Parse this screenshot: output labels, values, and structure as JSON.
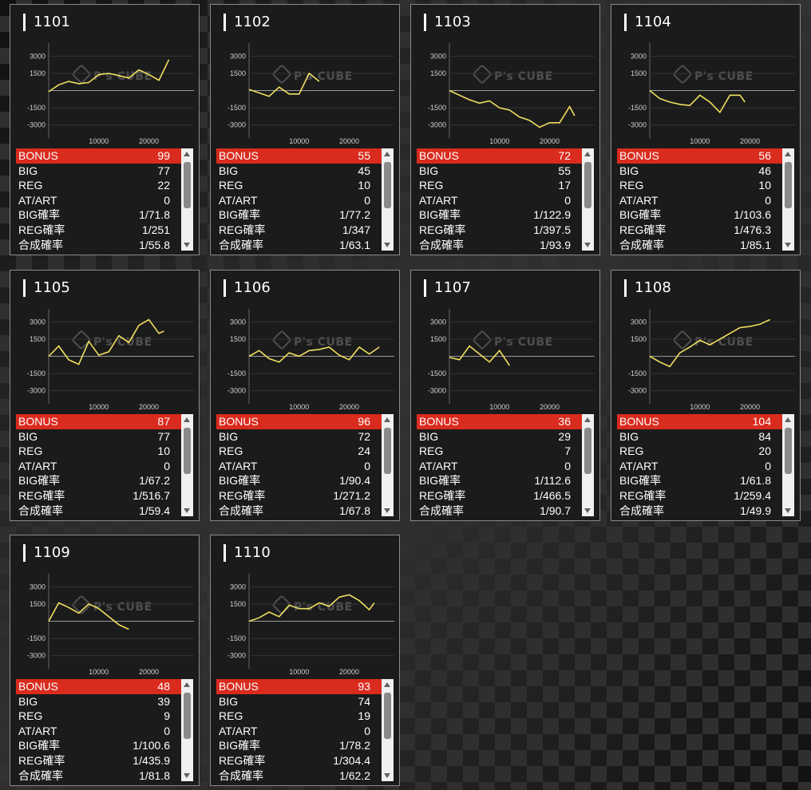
{
  "watermark": "P's CUBE",
  "labels": {
    "bonus": "BONUS",
    "big": "BIG",
    "reg": "REG",
    "atart": "AT/ART",
    "big_prob": "BIG確率",
    "reg_prob": "REG確率",
    "total_prob": "合成確率"
  },
  "colors": {
    "line": "#f0e060",
    "bonus_bg": "#d92b1e"
  },
  "axes": {
    "y_ticks": [
      3000,
      1500,
      -1500,
      -3000
    ],
    "x_ticks": [
      10000,
      20000
    ]
  },
  "machines": [
    {
      "id": "1101",
      "bonus": "99",
      "big": "77",
      "reg": "22",
      "atart": "0",
      "big_prob": "1/71.8",
      "reg_prob": "1/251",
      "total_prob": "1/55.8",
      "chart_data": {
        "type": "line",
        "x": [
          0,
          2000,
          4000,
          6000,
          8000,
          10000,
          12000,
          14000,
          16000,
          18000,
          20000,
          22000,
          24000
        ],
        "y": [
          -100,
          500,
          800,
          600,
          700,
          1400,
          1500,
          1300,
          1100,
          1800,
          1400,
          900,
          2700
        ]
      }
    },
    {
      "id": "1102",
      "bonus": "55",
      "big": "45",
      "reg": "10",
      "atart": "0",
      "big_prob": "1/77.2",
      "reg_prob": "1/347",
      "total_prob": "1/63.1",
      "chart_data": {
        "type": "line",
        "x": [
          0,
          2000,
          4000,
          6000,
          8000,
          10000,
          12000,
          14000
        ],
        "y": [
          100,
          -200,
          -500,
          300,
          -300,
          -300,
          1500,
          800
        ]
      }
    },
    {
      "id": "1103",
      "bonus": "72",
      "big": "55",
      "reg": "17",
      "atart": "0",
      "big_prob": "1/122.9",
      "reg_prob": "1/397.5",
      "total_prob": "1/93.9",
      "chart_data": {
        "type": "line",
        "x": [
          0,
          2000,
          4000,
          6000,
          8000,
          10000,
          12000,
          14000,
          16000,
          18000,
          20000,
          22000,
          24000,
          25000
        ],
        "y": [
          0,
          -400,
          -800,
          -1100,
          -900,
          -1500,
          -1700,
          -2300,
          -2600,
          -3200,
          -2800,
          -2800,
          -1400,
          -2200
        ]
      }
    },
    {
      "id": "1104",
      "bonus": "56",
      "big": "46",
      "reg": "10",
      "atart": "0",
      "big_prob": "1/103.6",
      "reg_prob": "1/476.3",
      "total_prob": "1/85.1",
      "chart_data": {
        "type": "line",
        "x": [
          0,
          2000,
          4000,
          6000,
          8000,
          10000,
          12000,
          14000,
          16000,
          18000,
          19000
        ],
        "y": [
          0,
          -700,
          -1000,
          -1200,
          -1300,
          -400,
          -1000,
          -1900,
          -400,
          -400,
          -1000
        ]
      }
    },
    {
      "id": "1105",
      "bonus": "87",
      "big": "77",
      "reg": "10",
      "atart": "0",
      "big_prob": "1/67.2",
      "reg_prob": "1/516.7",
      "total_prob": "1/59.4",
      "chart_data": {
        "type": "line",
        "x": [
          0,
          2000,
          4000,
          6000,
          8000,
          10000,
          12000,
          14000,
          16000,
          18000,
          20000,
          22000,
          23000
        ],
        "y": [
          0,
          900,
          -300,
          -700,
          1300,
          100,
          400,
          1800,
          1200,
          2700,
          3200,
          2000,
          2200
        ]
      }
    },
    {
      "id": "1106",
      "bonus": "96",
      "big": "72",
      "reg": "24",
      "atart": "0",
      "big_prob": "1/90.4",
      "reg_prob": "1/271.2",
      "total_prob": "1/67.8",
      "chart_data": {
        "type": "line",
        "x": [
          0,
          2000,
          4000,
          6000,
          8000,
          10000,
          12000,
          14000,
          16000,
          18000,
          20000,
          22000,
          24000,
          26000
        ],
        "y": [
          0,
          500,
          -200,
          -500,
          300,
          0,
          500,
          600,
          800,
          100,
          -300,
          800,
          200,
          800
        ]
      }
    },
    {
      "id": "1107",
      "bonus": "36",
      "big": "29",
      "reg": "7",
      "atart": "0",
      "big_prob": "1/112.6",
      "reg_prob": "1/466.5",
      "total_prob": "1/90.7",
      "chart_data": {
        "type": "line",
        "x": [
          0,
          2000,
          4000,
          6000,
          8000,
          10000,
          12000
        ],
        "y": [
          -100,
          -300,
          900,
          200,
          -500,
          500,
          -800
        ]
      }
    },
    {
      "id": "1108",
      "bonus": "104",
      "big": "84",
      "reg": "20",
      "atart": "0",
      "big_prob": "1/61.8",
      "reg_prob": "1/259.4",
      "total_prob": "1/49.9",
      "chart_data": {
        "type": "line",
        "x": [
          0,
          2000,
          4000,
          6000,
          8000,
          10000,
          12000,
          14000,
          16000,
          18000,
          20000,
          22000,
          24000
        ],
        "y": [
          0,
          -500,
          -900,
          300,
          800,
          1400,
          1000,
          1500,
          2000,
          2500,
          2600,
          2800,
          3200
        ]
      }
    },
    {
      "id": "1109",
      "bonus": "48",
      "big": "39",
      "reg": "9",
      "atart": "0",
      "big_prob": "1/100.6",
      "reg_prob": "1/435.9",
      "total_prob": "1/81.8",
      "chart_data": {
        "type": "line",
        "x": [
          0,
          2000,
          4000,
          6000,
          8000,
          10000,
          12000,
          14000,
          16000
        ],
        "y": [
          0,
          1600,
          1200,
          700,
          1500,
          1100,
          400,
          -300,
          -700
        ]
      }
    },
    {
      "id": "1110",
      "bonus": "93",
      "big": "74",
      "reg": "19",
      "atart": "0",
      "big_prob": "1/78.2",
      "reg_prob": "1/304.4",
      "total_prob": "1/62.2",
      "chart_data": {
        "type": "line",
        "x": [
          0,
          2000,
          4000,
          6000,
          8000,
          10000,
          12000,
          14000,
          16000,
          18000,
          20000,
          22000,
          24000,
          25000
        ],
        "y": [
          0,
          300,
          800,
          400,
          1400,
          1100,
          1100,
          1600,
          1300,
          2100,
          2300,
          1800,
          1000,
          1600
        ]
      }
    }
  ]
}
